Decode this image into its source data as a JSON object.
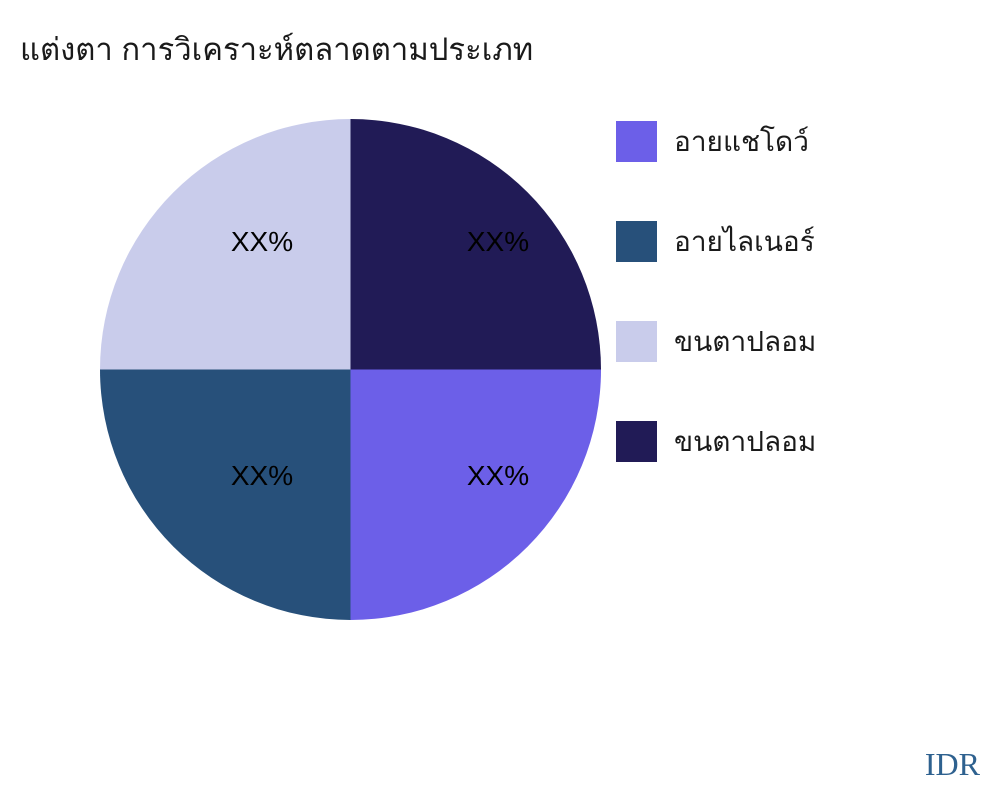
{
  "title": "แต่งตา การวิเคราะห์ตลาดตามประเภท",
  "footer": {
    "currency": "IDR",
    "color": "#2e618f"
  },
  "chart_data": {
    "type": "pie",
    "title": "แต่งตา การวิเคราะห์ตลาดตามประเภท",
    "legend_position": "right",
    "direction": "clockwise-from-top",
    "slice_order_clockwise_from_top": [
      "top-right",
      "bottom-right",
      "bottom-left",
      "top-left"
    ],
    "slices": [
      {
        "label": "อายแชโดว์",
        "value": 25,
        "value_label": "XX%",
        "color": "#6c5fe8",
        "position": "bottom-right"
      },
      {
        "label": "อายไลเนอร์",
        "value": 25,
        "value_label": "XX%",
        "color": "#27507a",
        "position": "bottom-left"
      },
      {
        "label": "ขนตาปลอม",
        "value": 25,
        "value_label": "XX%",
        "color": "#c9cceb",
        "position": "top-left"
      },
      {
        "label": "ขนตาปลอม",
        "value": 25,
        "value_label": "XX%",
        "color": "#211b56",
        "position": "top-right"
      }
    ]
  }
}
